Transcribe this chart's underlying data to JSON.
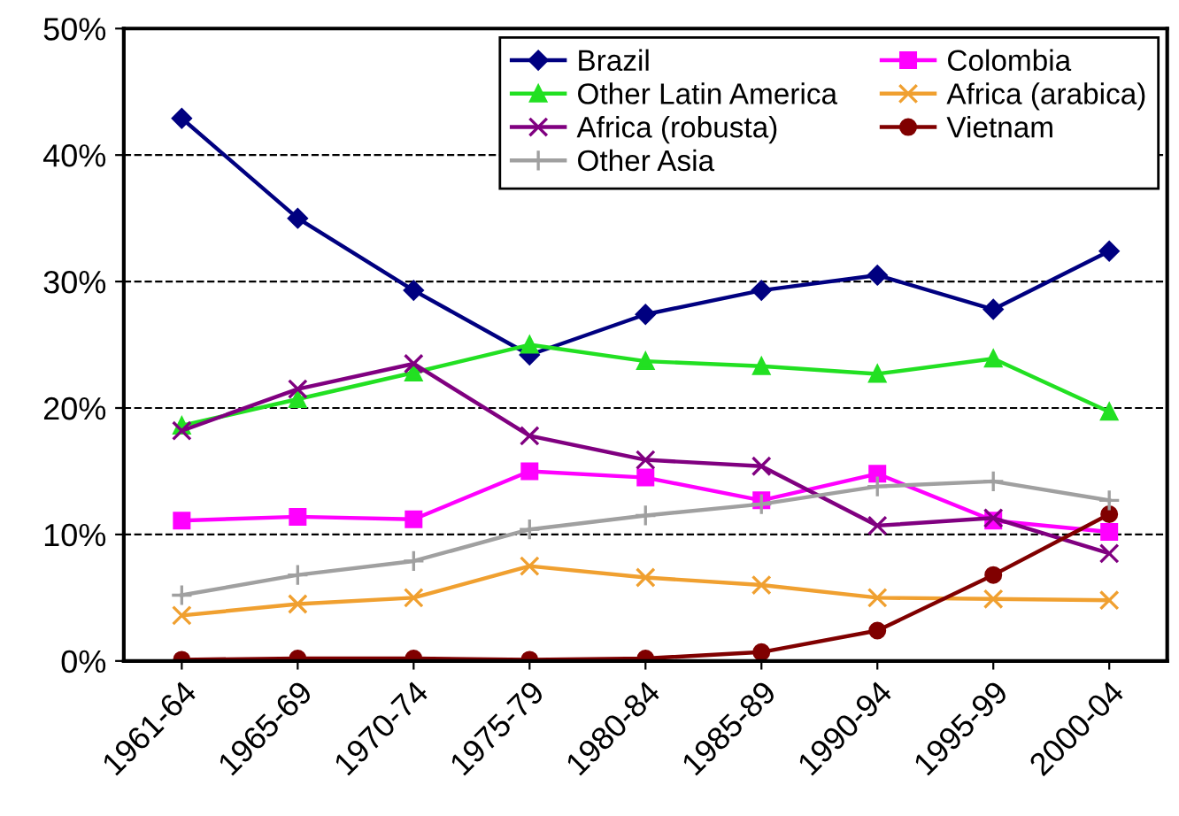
{
  "chart_data": {
    "type": "line",
    "categories": [
      "1961-64",
      "1965-69",
      "1970-74",
      "1975-79",
      "1980-84",
      "1985-89",
      "1990-94",
      "1995-99",
      "2000-04"
    ],
    "series": [
      {
        "name": "Brazil",
        "color": "#000080",
        "marker": "diamond",
        "values": [
          42.9,
          35.0,
          29.3,
          24.2,
          27.4,
          29.3,
          30.5,
          27.8,
          32.4
        ]
      },
      {
        "name": "Colombia",
        "color": "#ff00ff",
        "marker": "square",
        "values": [
          11.1,
          11.4,
          11.2,
          15.0,
          14.5,
          12.7,
          14.8,
          11.1,
          10.2
        ]
      },
      {
        "name": "Other Latin America",
        "color": "#22e022",
        "marker": "triangle",
        "values": [
          18.6,
          20.7,
          22.8,
          25.0,
          23.7,
          23.3,
          22.7,
          23.9,
          19.7
        ]
      },
      {
        "name": "Africa (arabica)",
        "color": "#f0a030",
        "marker": "cross",
        "values": [
          3.6,
          4.5,
          5.0,
          7.5,
          6.6,
          6.0,
          5.0,
          4.9,
          4.8
        ]
      },
      {
        "name": "Africa (robusta)",
        "color": "#800080",
        "marker": "cross",
        "values": [
          18.2,
          21.5,
          23.5,
          17.8,
          15.9,
          15.4,
          10.7,
          11.3,
          8.5
        ]
      },
      {
        "name": "Vietnam",
        "color": "#800000",
        "marker": "circle",
        "values": [
          0.1,
          0.2,
          0.2,
          0.1,
          0.2,
          0.7,
          2.4,
          6.8,
          11.6
        ]
      },
      {
        "name": "Other Asia",
        "color": "#a0a0a0",
        "marker": "plus",
        "values": [
          5.2,
          6.8,
          7.9,
          10.4,
          11.5,
          12.4,
          13.8,
          14.2,
          12.7
        ]
      }
    ],
    "ylim": [
      0,
      50
    ],
    "yticks": [
      {
        "value": 0,
        "label": "0%"
      },
      {
        "value": 10,
        "label": "10%"
      },
      {
        "value": 20,
        "label": "20%"
      },
      {
        "value": 30,
        "label": "30%"
      },
      {
        "value": 40,
        "label": "40%"
      },
      {
        "value": 50,
        "label": "50%"
      }
    ],
    "grid": "y",
    "legend": "top right",
    "line_style": "solid"
  }
}
